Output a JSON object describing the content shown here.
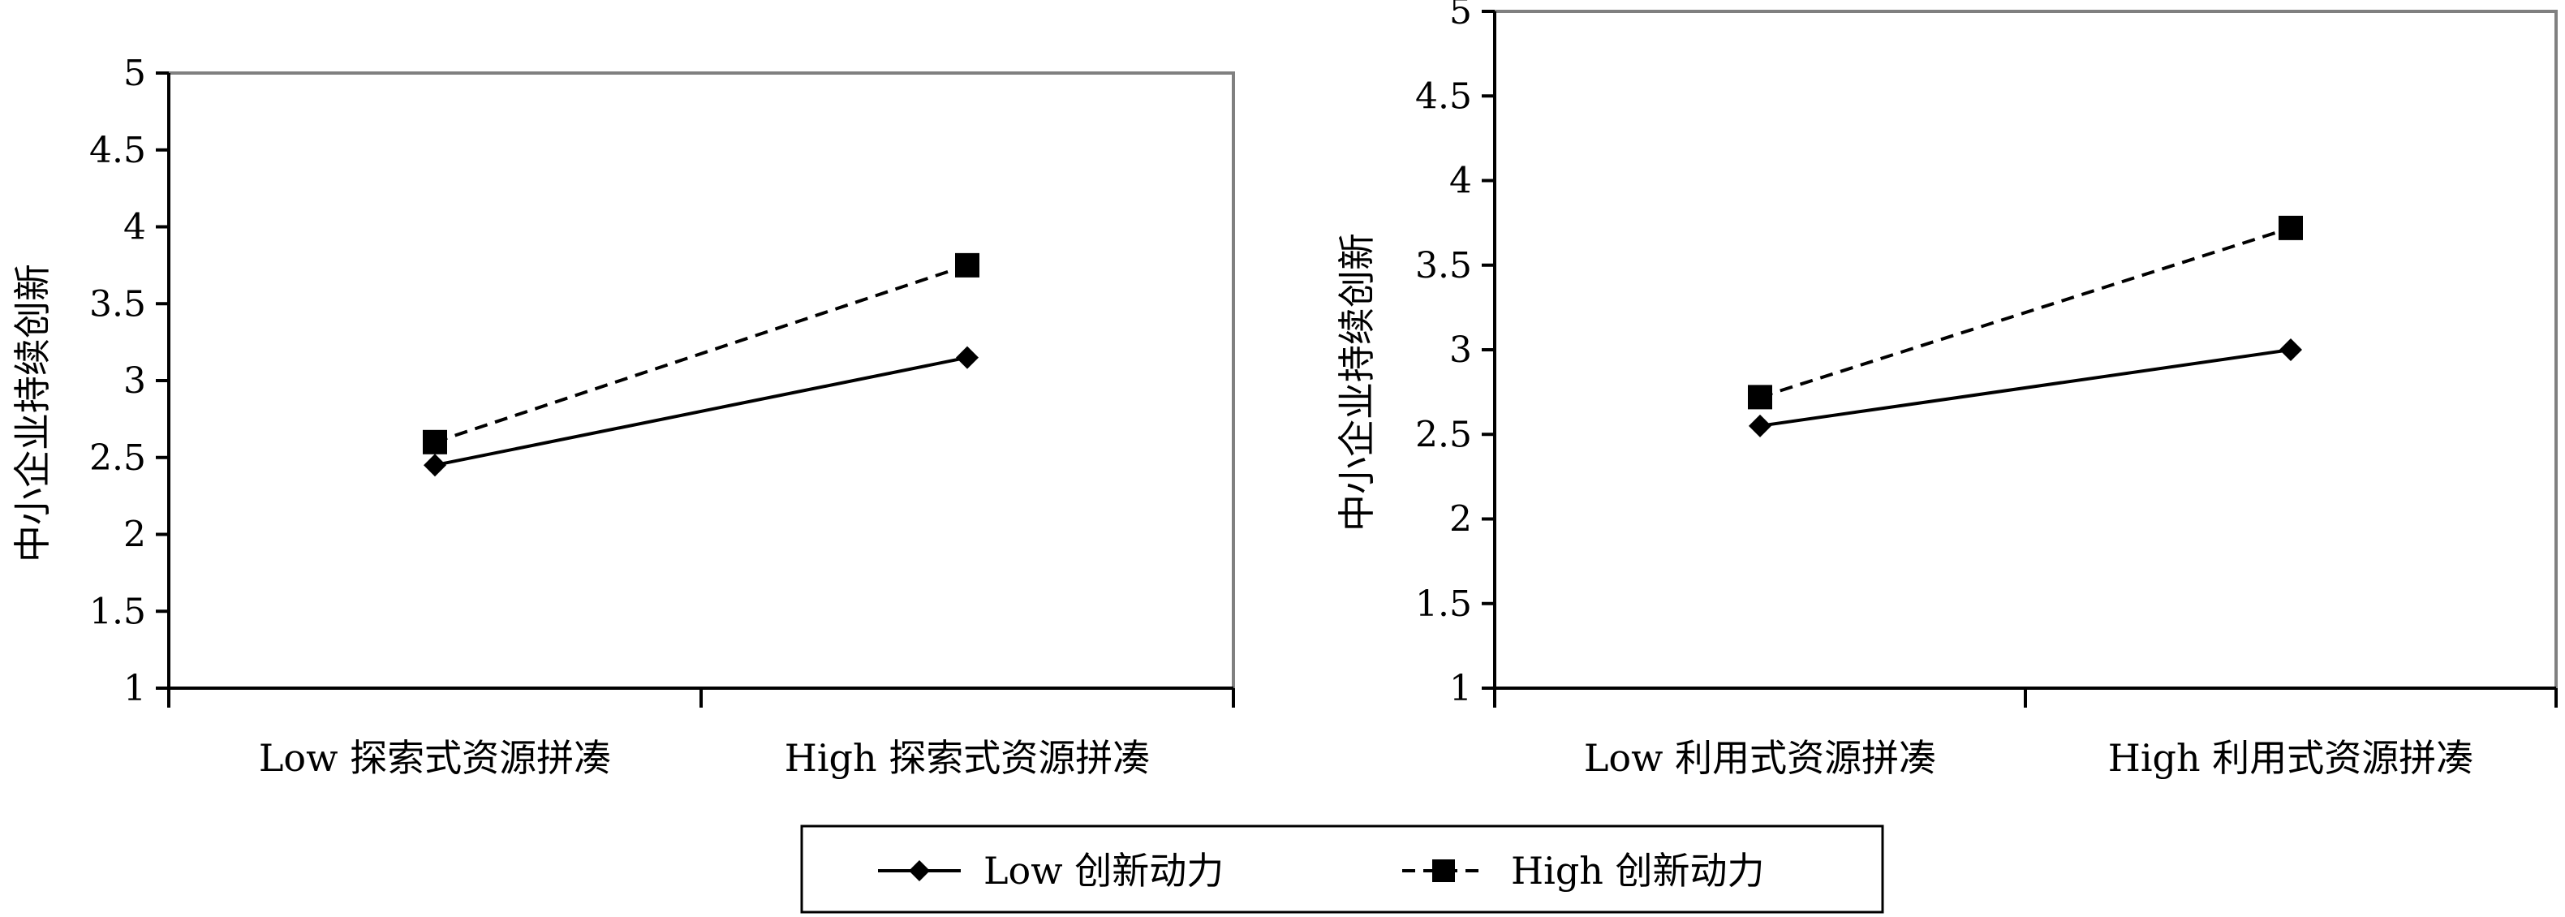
{
  "chart_data": [
    {
      "type": "line",
      "categories": [
        "Low 探索式资源拼凑",
        "High 探索式资源拼凑"
      ],
      "series": [
        {
          "name": "Low 创新动力",
          "values": [
            2.45,
            3.15
          ],
          "line_style": "solid",
          "marker": "diamond"
        },
        {
          "name": "High 创新动力",
          "values": [
            2.6,
            3.75
          ],
          "line_style": "dashed",
          "marker": "square"
        }
      ],
      "title": "",
      "xlabel": "",
      "ylabel": "中小企业持续创新",
      "ylim": [
        1,
        5
      ],
      "yticks": [
        "1",
        "1.5",
        "2",
        "2.5",
        "3",
        "3.5",
        "4",
        "4.5",
        "5"
      ],
      "grid": false
    },
    {
      "type": "line",
      "categories": [
        "Low 利用式资源拼凑",
        "High 利用式资源拼凑"
      ],
      "series": [
        {
          "name": "Low 创新动力",
          "values": [
            2.55,
            3.0
          ],
          "line_style": "solid",
          "marker": "diamond"
        },
        {
          "name": "High 创新动力",
          "values": [
            2.72,
            3.72
          ],
          "line_style": "dashed",
          "marker": "square"
        }
      ],
      "title": "",
      "xlabel": "",
      "ylabel": "中小企业持续创新",
      "ylim": [
        1,
        5
      ],
      "yticks": [
        "1",
        "1.5",
        "2",
        "2.5",
        "3",
        "3.5",
        "4",
        "4.5",
        "5"
      ],
      "grid": false
    }
  ],
  "legend": {
    "placement": "bottom-center",
    "items": [
      {
        "label": "Low 创新动力",
        "marker": "diamond",
        "line_style": "solid"
      },
      {
        "label": "High 创新动力",
        "marker": "square",
        "line_style": "dashed"
      }
    ]
  },
  "colors": {
    "line": "#000000",
    "frame": "#808080",
    "background": "#ffffff"
  }
}
